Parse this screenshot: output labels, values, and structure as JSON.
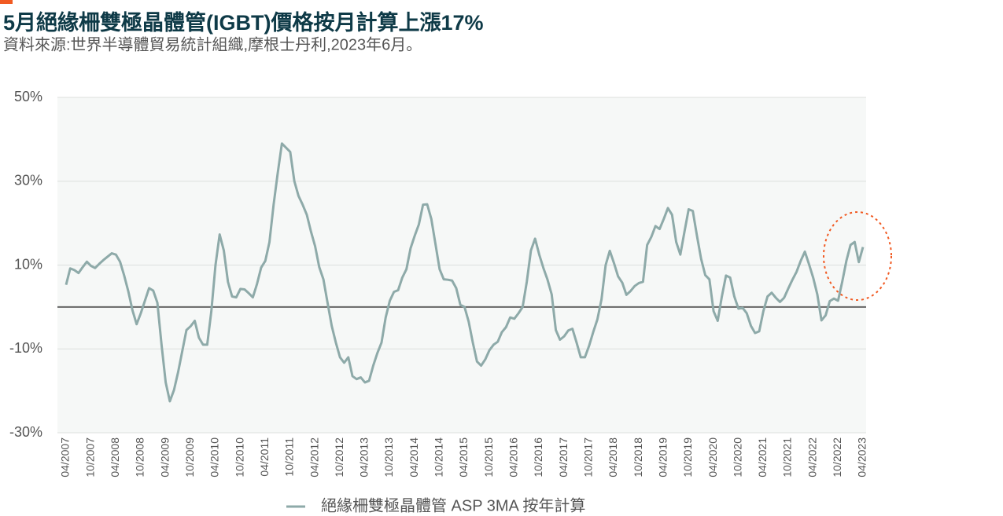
{
  "chart_data": {
    "type": "line",
    "title": "5月絕緣柵雙極晶體管(IGBT)價格按月計算上漲17%",
    "subtitle": "資料來源:世界半導體貿易統計組織,摩根士丹利,2023年6月。",
    "categories": [
      "04/2007",
      null,
      null,
      null,
      null,
      null,
      "10/2007",
      null,
      null,
      null,
      null,
      null,
      "04/2008",
      null,
      null,
      null,
      null,
      null,
      "10/2008",
      null,
      null,
      null,
      null,
      null,
      "04/2009",
      null,
      null,
      null,
      null,
      null,
      "10/2009",
      null,
      null,
      null,
      null,
      null,
      "04/2010",
      null,
      null,
      null,
      null,
      null,
      "10/2010",
      null,
      null,
      null,
      null,
      null,
      "04/2011",
      null,
      null,
      null,
      null,
      null,
      "10/2011",
      null,
      null,
      null,
      null,
      null,
      "04/2012",
      null,
      null,
      null,
      null,
      null,
      "10/2012",
      null,
      null,
      null,
      null,
      null,
      "04/2013",
      null,
      null,
      null,
      null,
      null,
      "10/2013",
      null,
      null,
      null,
      null,
      null,
      "04/2014",
      null,
      null,
      null,
      null,
      null,
      "10/2014",
      null,
      null,
      null,
      null,
      null,
      "04/2015",
      null,
      null,
      null,
      null,
      null,
      "10/2015",
      null,
      null,
      null,
      null,
      null,
      "04/2016",
      null,
      null,
      null,
      null,
      null,
      "10/2016",
      null,
      null,
      null,
      null,
      null,
      "04/2017",
      null,
      null,
      null,
      null,
      null,
      "10/2017",
      null,
      null,
      null,
      null,
      null,
      "04/2018",
      null,
      null,
      null,
      null,
      null,
      "10/2018",
      null,
      null,
      null,
      null,
      null,
      "04/2019",
      null,
      null,
      null,
      null,
      null,
      "10/2019",
      null,
      null,
      null,
      null,
      null,
      "04/2020",
      null,
      null,
      null,
      null,
      null,
      "10/2020",
      null,
      null,
      null,
      null,
      null,
      "04/2021",
      null,
      null,
      null,
      null,
      null,
      "10/2021",
      null,
      null,
      null,
      null,
      null,
      "04/2022",
      null,
      null,
      null,
      null,
      null,
      "10/2022",
      null,
      null,
      null,
      null,
      null,
      "04/2023"
    ],
    "series": [
      {
        "name": "絕緣柵雙極晶體管 ASP 3MA 按年計算",
        "color": "#8eaaa9",
        "values": [
          5.3,
          9.2,
          8.8,
          8.1,
          9.5,
          10.8,
          9.8,
          9.3,
          10.3,
          11.2,
          12,
          12.8,
          12.5,
          10.8,
          7.5,
          3.7,
          -0.8,
          -4.1,
          -1.5,
          1.5,
          4.5,
          3.9,
          1,
          -9,
          -18,
          -22.5,
          -19.8,
          -15.5,
          -10.5,
          -5.5,
          -4.6,
          -3.3,
          -7.3,
          -9,
          -9,
          -1,
          10,
          17.3,
          13.5,
          6,
          2.5,
          2.3,
          4.3,
          4.2,
          3.3,
          2.3,
          5.5,
          9.4,
          11,
          15.5,
          24.4,
          32,
          39,
          38,
          37,
          30,
          26.5,
          24.4,
          22,
          18,
          14.5,
          9.5,
          6.6,
          1,
          -4.5,
          -8.5,
          -12,
          -13.3,
          -12,
          -16.5,
          -17.2,
          -16.8,
          -18,
          -17.6,
          -14,
          -11,
          -8.5,
          -2.5,
          1.5,
          3.6,
          4,
          7,
          9,
          14,
          17,
          19.7,
          24.4,
          24.5,
          21,
          15,
          9,
          6.6,
          6.5,
          6.3,
          4.5,
          0.5,
          0,
          -3.5,
          -8.5,
          -13,
          -14,
          -12.5,
          -10.3,
          -9,
          -8.3,
          -6,
          -4.8,
          -2.5,
          -2.8,
          -1.5,
          0,
          6,
          13.5,
          16.3,
          12.5,
          9.3,
          6.5,
          3,
          -5.5,
          -7.8,
          -7,
          -5.6,
          -5.2,
          -8.5,
          -12,
          -12,
          -9.3,
          -6,
          -3,
          1.8,
          10,
          13.4,
          10.5,
          7.3,
          5.8,
          2.9,
          3.8,
          5,
          5.7,
          6,
          14.8,
          16.7,
          19.3,
          18.6,
          21,
          23.6,
          22,
          15.5,
          12.5,
          18,
          23.3,
          22.9,
          17,
          11.5,
          7.6,
          6.6,
          -1,
          -3.3,
          2.5,
          7.5,
          7,
          2.5,
          -0.4,
          -0.2,
          -1.5,
          -4.5,
          -6.2,
          -5.8,
          -1,
          2.5,
          3.4,
          2.2,
          1.2,
          2.2,
          4.4,
          6.5,
          8.4,
          11,
          13.2,
          10.2,
          7,
          3,
          -3.2,
          -2,
          1.4,
          2,
          1.5,
          6,
          11,
          14.8,
          15.5,
          10.7,
          14.3
        ]
      }
    ],
    "ylim": [
      -30,
      50
    ],
    "yticks": [
      {
        "value": -30,
        "label": "-30%"
      },
      {
        "value": -10,
        "label": "-10%"
      },
      {
        "value": 10,
        "label": "10%"
      },
      {
        "value": 30,
        "label": "30%"
      },
      {
        "value": 50,
        "label": "50%"
      }
    ],
    "grid": true
  }
}
